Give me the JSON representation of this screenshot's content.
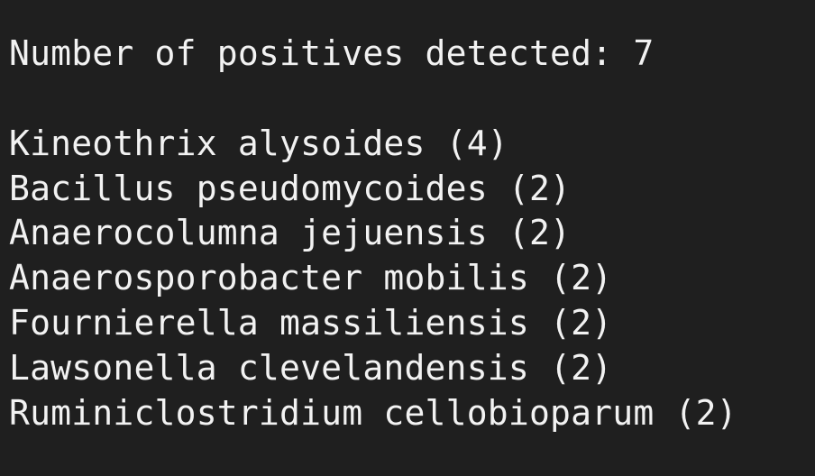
{
  "output": {
    "summary": "Number of positives detected: 7",
    "results": [
      "Kineothrix alysoides (4)",
      "Bacillus pseudomycoides (2)",
      "Anaerocolumna jejuensis (2)",
      "Anaerosporobacter mobilis (2)",
      "Fournierella massiliensis (2)",
      "Lawsonella clevelandensis (2)",
      "Ruminiclostridium cellobioparum (2)"
    ]
  },
  "colors": {
    "background": "#1f1f1f",
    "text": "#f2f2f2"
  }
}
